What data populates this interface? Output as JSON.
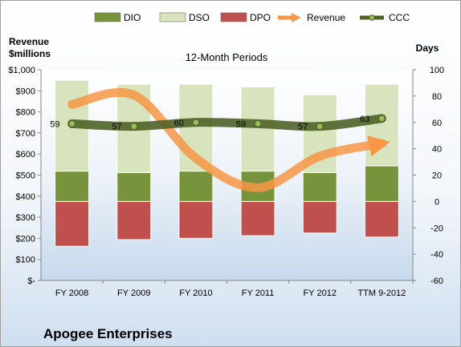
{
  "chart_data": {
    "type": "bar",
    "title": "12-Month Periods",
    "company": "Apogee Enterprises",
    "left_axis_title": [
      "Revenue",
      "$millions"
    ],
    "right_axis_title": "Days",
    "categories": [
      "FY 2008",
      "FY 2009",
      "FY 2010",
      "FY 2011",
      "FY 2012",
      "TTM 9-2012"
    ],
    "left_ticks": [
      "$-",
      "$100",
      "$200",
      "$300",
      "$400",
      "$500",
      "$600",
      "$700",
      "$800",
      "$900",
      "$1,000"
    ],
    "right_ticks": [
      "-60",
      "-40",
      "-20",
      "0",
      "20",
      "40",
      "60",
      "80",
      "100"
    ],
    "left_ylim": [
      0,
      1000
    ],
    "right_ylim": [
      -60,
      100
    ],
    "grid": false,
    "legend_position": "top",
    "stack_note": "DPO stacked below zero, DIO and DSO stacked above zero on the Days axis",
    "series": [
      {
        "name": "DIO",
        "axis": "right",
        "kind": "stacked-bar",
        "color": "#77933c",
        "values": [
          23,
          22,
          23,
          23,
          22,
          27
        ]
      },
      {
        "name": "DSO",
        "axis": "right",
        "kind": "stacked-bar",
        "color": "#d7e4bd",
        "values": [
          69,
          67,
          66,
          64,
          59,
          62
        ]
      },
      {
        "name": "DPO",
        "axis": "right",
        "kind": "stacked-bar",
        "color": "#c0504d",
        "values": [
          -34,
          -29,
          -28,
          -26,
          -24,
          -27
        ]
      },
      {
        "name": "Revenue",
        "axis": "left",
        "kind": "smooth-arrow-line",
        "color": "#f79646",
        "values": [
          835,
          880,
          580,
          440,
          590,
          650
        ]
      },
      {
        "name": "CCC",
        "axis": "right",
        "kind": "smooth-line",
        "color": "#4f6228",
        "values": [
          59,
          57,
          60,
          59,
          57,
          63
        ]
      }
    ],
    "data_labels": [
      "59",
      "57",
      "60",
      "59",
      "57",
      "63"
    ]
  }
}
